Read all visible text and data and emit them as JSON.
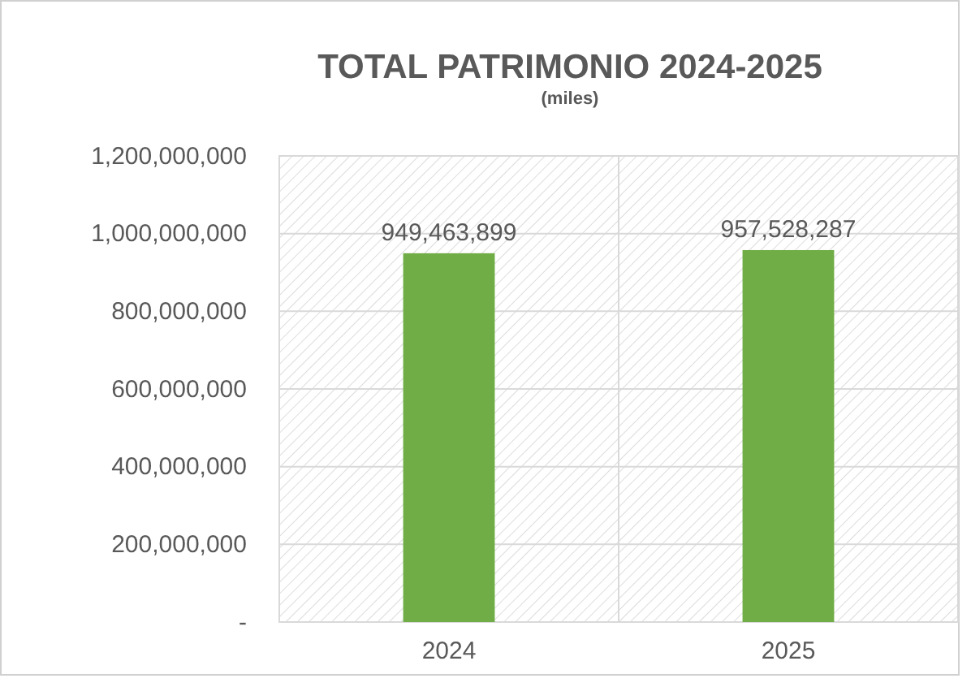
{
  "chart_data": {
    "type": "bar",
    "title": "TOTAL PATRIMONIO 2024-2025",
    "subtitle": "(miles)",
    "categories": [
      "2024",
      "2025"
    ],
    "values": [
      949463899,
      957528287
    ],
    "color": "#70ad47",
    "ylim": [
      0,
      1200000000
    ],
    "yticks": [
      {
        "value": 0,
        "label": "-"
      },
      {
        "value": 200000000,
        "label": "200,000,000"
      },
      {
        "value": 400000000,
        "label": "400,000,000"
      },
      {
        "value": 600000000,
        "label": "600,000,000"
      },
      {
        "value": 800000000,
        "label": "800,000,000"
      },
      {
        "value": 1000000000,
        "label": "1,000,000,000"
      },
      {
        "value": 1200000000,
        "label": "1,200,000,000"
      }
    ],
    "grid": true,
    "value_labels": [
      "949,463,899",
      "957,528,287"
    ]
  }
}
